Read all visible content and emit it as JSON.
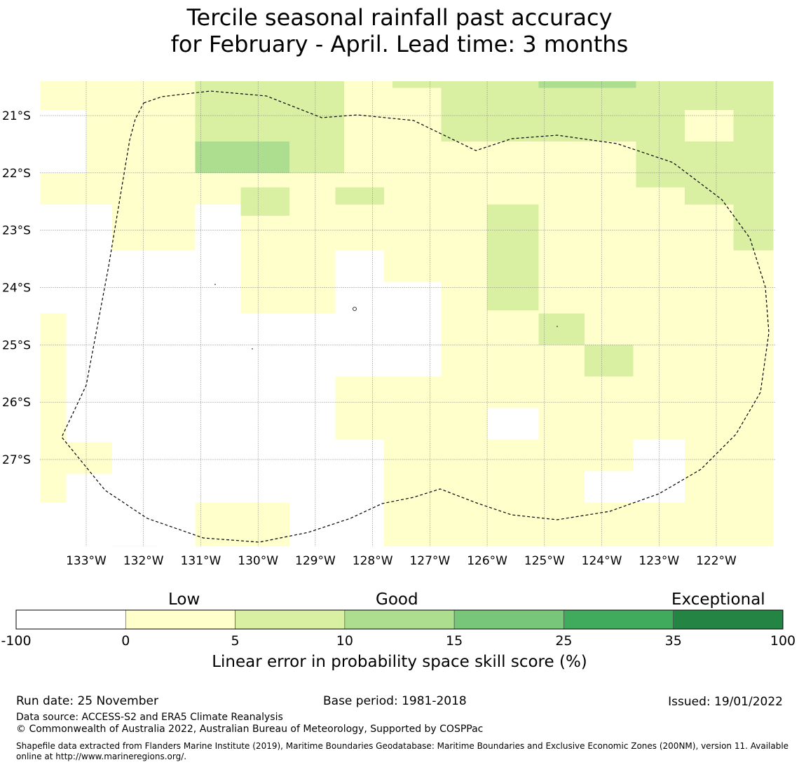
{
  "title": {
    "line1": "Tercile seasonal rainfall past accuracy",
    "line2": "for February - April. Lead time: 3 months"
  },
  "map": {
    "lon_labels": [
      "133°W",
      "132°W",
      "131°W",
      "130°W",
      "129°W",
      "128°W",
      "127°W",
      "126°W",
      "125°W",
      "124°W",
      "123°W",
      "122°W"
    ],
    "lat_labels": [
      "21°S",
      "22°S",
      "23°S",
      "24°S",
      "25°S",
      "26°S",
      "27°S"
    ],
    "colors": {
      "white": "#ffffff",
      "c0": "#ffffcc",
      "c1": "#d9f0a3",
      "c2": "#addd8e",
      "c3": "#78c679",
      "c4": "#41ab5d",
      "c5": "#238443"
    },
    "grid_rows": [
      "..ooooooooooooyyyyyyyyyYyyy...",
      ".ooooyyyyyooooyyyyyyyYyyyy....",
      "oooooyyyyyoooooooooooyyyy.....",
      "oooooyyyyyooooooooooooyyyyyy..",
      "..Yooooooooooooooooooooyyyyy..",
      "..oooooooooooooooooooooyyoooo.",
      "..oooooooooooooooooooooyyoooo.",
      "..ooooooooooooooooooooooooooo.",
      "..ooooooooooooooooooooooooooo."
    ]
  },
  "cells": [
    {
      "lon0": -133.8,
      "lon1": -133.0,
      "lat0": -20.9,
      "lat1": -20.35,
      "v": "c0"
    },
    {
      "lon0": -133.0,
      "lon1": -131.1,
      "lat0": -20.9,
      "lat1": -20.35,
      "v": "c0"
    },
    {
      "lon0": -131.1,
      "lon1": -128.5,
      "lat0": -20.9,
      "lat1": -20.35,
      "v": "c1"
    },
    {
      "lon0": -128.5,
      "lon1": -126.8,
      "lat0": -20.9,
      "lat1": -20.35,
      "v": "c0"
    },
    {
      "lon0": -126.8,
      "lon1": -125.1,
      "lat0": -20.9,
      "lat1": -20.35,
      "v": "c1"
    },
    {
      "lon0": -125.1,
      "lon1": -123.4,
      "lat0": -20.9,
      "lat1": -20.35,
      "v": "c1"
    },
    {
      "lon0": -123.4,
      "lon1": -121.0,
      "lat0": -20.9,
      "lat1": -20.35,
      "v": "c1"
    },
    {
      "lon0": -125.1,
      "lon1": -123.4,
      "lat0": -20.52,
      "lat1": -20.35,
      "v": "c2"
    },
    {
      "lon0": -127.65,
      "lon1": -126.8,
      "lat0": -20.52,
      "lat1": -20.35,
      "v": "c1"
    },
    {
      "lon0": -133.0,
      "lon1": -131.1,
      "lat0": -21.45,
      "lat1": -20.9,
      "v": "c0"
    },
    {
      "lon0": -131.1,
      "lon1": -128.5,
      "lat0": -21.45,
      "lat1": -20.9,
      "v": "c1"
    },
    {
      "lon0": -128.5,
      "lon1": -126.8,
      "lat0": -21.45,
      "lat1": -20.9,
      "v": "c0"
    },
    {
      "lon0": -126.8,
      "lon1": -125.1,
      "lat0": -21.45,
      "lat1": -20.9,
      "v": "c1"
    },
    {
      "lon0": -125.1,
      "lon1": -122.55,
      "lat0": -21.45,
      "lat1": -20.9,
      "v": "c1"
    },
    {
      "lon0": -122.55,
      "lon1": -121.7,
      "lat0": -21.45,
      "lat1": -20.9,
      "v": "c0"
    },
    {
      "lon0": -121.7,
      "lon1": -121.0,
      "lat0": -21.45,
      "lat1": -20.9,
      "v": "c1"
    },
    {
      "lon0": -133.0,
      "lon1": -132.55,
      "lat0": -22.25,
      "lat1": -21.45,
      "v": "c0"
    },
    {
      "lon0": -132.55,
      "lon1": -131.1,
      "lat0": -22.25,
      "lat1": -21.45,
      "v": "c0"
    },
    {
      "lon0": -131.1,
      "lon1": -129.45,
      "lat0": -22.0,
      "lat1": -21.45,
      "v": "c2"
    },
    {
      "lon0": -129.45,
      "lon1": -128.5,
      "lat0": -22.0,
      "lat1": -21.45,
      "v": "c1"
    },
    {
      "lon0": -131.1,
      "lon1": -128.5,
      "lat0": -22.25,
      "lat1": -22.0,
      "v": "c0"
    },
    {
      "lon0": -128.5,
      "lon1": -125.1,
      "lat0": -22.25,
      "lat1": -21.45,
      "v": "c0"
    },
    {
      "lon0": -125.1,
      "lon1": -123.4,
      "lat0": -22.25,
      "lat1": -21.45,
      "v": "c0"
    },
    {
      "lon0": -123.4,
      "lon1": -121.0,
      "lat0": -22.25,
      "lat1": -21.45,
      "v": "c1"
    },
    {
      "lon0": -131.1,
      "lon1": -129.45,
      "lat0": -22.25,
      "lat1": -22.0,
      "v": "c0"
    },
    {
      "lon0": -133.8,
      "lon1": -133.0,
      "lat0": -22.55,
      "lat1": -22.0,
      "v": "c0"
    },
    {
      "lon0": -133.0,
      "lon1": -131.1,
      "lat0": -22.55,
      "lat1": -22.25,
      "v": "c0"
    },
    {
      "lon0": -131.1,
      "lon1": -130.3,
      "lat0": -22.55,
      "lat1": -22.25,
      "v": "c0"
    },
    {
      "lon0": -130.3,
      "lon1": -129.45,
      "lat0": -22.55,
      "lat1": -22.25,
      "v": "c1"
    },
    {
      "lon0": -129.45,
      "lon1": -128.65,
      "lat0": -22.55,
      "lat1": -22.25,
      "v": "c0"
    },
    {
      "lon0": -128.65,
      "lon1": -127.8,
      "lat0": -22.55,
      "lat1": -22.25,
      "v": "c1"
    },
    {
      "lon0": -127.8,
      "lon1": -122.55,
      "lat0": -22.55,
      "lat1": -22.25,
      "v": "c0"
    },
    {
      "lon0": -122.55,
      "lon1": -121.0,
      "lat0": -22.55,
      "lat1": -22.25,
      "v": "c1"
    },
    {
      "lon0": -132.55,
      "lon1": -131.1,
      "lat0": -22.75,
      "lat1": -22.55,
      "v": "c0"
    },
    {
      "lon0": -130.3,
      "lon1": -129.45,
      "lat0": -22.75,
      "lat1": -22.55,
      "v": "c1"
    },
    {
      "lon0": -130.3,
      "lon1": -128.65,
      "lat0": -23.35,
      "lat1": -22.75,
      "v": "c0"
    },
    {
      "lon0": -129.45,
      "lon1": -128.65,
      "lat0": -22.75,
      "lat1": -22.55,
      "v": "c0"
    },
    {
      "lon0": -128.65,
      "lon1": -126.0,
      "lat0": -23.35,
      "lat1": -22.55,
      "v": "c0"
    },
    {
      "lon0": -126.0,
      "lon1": -125.1,
      "lat0": -24.4,
      "lat1": -22.55,
      "v": "c1"
    },
    {
      "lon0": -125.1,
      "lon1": -121.7,
      "lat0": -23.35,
      "lat1": -22.55,
      "v": "c0"
    },
    {
      "lon0": -121.7,
      "lon1": -121.0,
      "lat0": -23.35,
      "lat1": -22.55,
      "v": "c1"
    },
    {
      "lon0": -121.7,
      "lon1": -121.0,
      "lat0": -23.35,
      "lat1": -23.0,
      "v": "c1"
    },
    {
      "lon0": -131.1,
      "lon1": -131.1,
      "lat0": -23.35,
      "lat1": -22.75,
      "v": "c0"
    },
    {
      "lon0": -132.55,
      "lon1": -131.1,
      "lat0": -23.35,
      "lat1": -22.75,
      "v": "c0"
    },
    {
      "lon0": -130.3,
      "lon1": -129.45,
      "lat0": -24.45,
      "lat1": -23.35,
      "v": "c0"
    },
    {
      "lon0": -129.45,
      "lon1": -128.65,
      "lat0": -24.45,
      "lat1": -23.35,
      "v": "c0"
    },
    {
      "lon0": -127.8,
      "lon1": -126.8,
      "lat0": -23.9,
      "lat1": -23.35,
      "v": "c0"
    },
    {
      "lon0": -126.8,
      "lon1": -126.0,
      "lat0": -25.55,
      "lat1": -23.35,
      "v": "c0"
    },
    {
      "lon0": -125.1,
      "lon1": -121.0,
      "lat0": -24.45,
      "lat1": -23.35,
      "v": "c0"
    },
    {
      "lon0": -126.0,
      "lon1": -125.1,
      "lat0": -25.55,
      "lat1": -24.4,
      "v": "c0"
    },
    {
      "lon0": -125.1,
      "lon1": -124.3,
      "lat0": -25.0,
      "lat1": -24.45,
      "v": "c1"
    },
    {
      "lon0": -124.3,
      "lon1": -121.0,
      "lat0": -25.55,
      "lat1": -24.45,
      "v": "c0"
    },
    {
      "lon0": -125.1,
      "lon1": -124.3,
      "lat0": -25.55,
      "lat1": -25.0,
      "v": "c0"
    },
    {
      "lon0": -124.3,
      "lon1": -123.45,
      "lat0": -25.55,
      "lat1": -25.0,
      "v": "c1"
    },
    {
      "lon0": -123.45,
      "lon1": -121.0,
      "lat0": -25.55,
      "lat1": -25.0,
      "v": "c0"
    },
    {
      "lon0": -133.8,
      "lon1": -133.35,
      "lat0": -27.75,
      "lat1": -24.45,
      "v": "c0"
    },
    {
      "lon0": -133.35,
      "lon1": -132.55,
      "lat0": -27.25,
      "lat1": -26.7,
      "v": "c0"
    },
    {
      "lon0": -128.65,
      "lon1": -127.8,
      "lat0": -26.65,
      "lat1": -25.55,
      "v": "c0"
    },
    {
      "lon0": -127.8,
      "lon1": -126.0,
      "lat0": -28.65,
      "lat1": -25.55,
      "v": "c0"
    },
    {
      "lon0": -126.0,
      "lon1": -125.1,
      "lat0": -26.1,
      "lat1": -25.55,
      "v": "c0"
    },
    {
      "lon0": -125.1,
      "lon1": -121.0,
      "lat0": -26.65,
      "lat1": -25.55,
      "v": "c0"
    },
    {
      "lon0": -126.0,
      "lon1": -125.1,
      "lat0": -27.2,
      "lat1": -26.65,
      "v": "c0"
    },
    {
      "lon0": -125.1,
      "lon1": -123.45,
      "lat0": -27.2,
      "lat1": -26.65,
      "v": "c0"
    },
    {
      "lon0": -122.55,
      "lon1": -121.0,
      "lat0": -27.2,
      "lat1": -26.65,
      "v": "c0"
    },
    {
      "lon0": -126.0,
      "lon1": -124.3,
      "lat0": -27.75,
      "lat1": -27.2,
      "v": "c0"
    },
    {
      "lon0": -122.55,
      "lon1": -121.0,
      "lat0": -27.75,
      "lat1": -27.2,
      "v": "c0"
    },
    {
      "lon0": -126.0,
      "lon1": -125.1,
      "lat0": -28.65,
      "lat1": -27.75,
      "v": "c0"
    },
    {
      "lon0": -125.1,
      "lon1": -121.0,
      "lat0": -28.65,
      "lat1": -27.75,
      "v": "c0"
    },
    {
      "lon0": -131.1,
      "lon1": -129.45,
      "lat0": -28.65,
      "lat1": -27.75,
      "v": "c0"
    },
    {
      "lon0": -132.55,
      "lon1": -131.75,
      "lat0": -28.65,
      "lat1": -28.5,
      "v": "c0"
    }
  ],
  "colorbar": {
    "category_labels": [
      "Low",
      "Good",
      "Exceptional"
    ],
    "ticks": [
      "-100",
      "0",
      "5",
      "10",
      "15",
      "25",
      "35",
      "100"
    ],
    "segment_colors": [
      "#ffffff",
      "#ffffcc",
      "#d9f0a3",
      "#addd8e",
      "#78c679",
      "#41ab5d",
      "#238443"
    ],
    "label": "Linear error in probability space skill score (%)"
  },
  "footer": {
    "run_date": "Run date: 25 November",
    "base_period": "Base period: 1981-2018",
    "issued": "Issued: 19/01/2022",
    "data_source": "Data source: ACCESS-S2 and ERA5 Climate Reanalysis",
    "copyright": "© Commonwealth of Australia 2022, Australian Bureau of Meteorology, Supported by COSPPac",
    "shapefile": "Shapefile data extracted from Flanders Marine Institute (2019), Maritime Boundaries Geodatabase: Maritime Boundaries and Exclusive Economic Zones (200NM), version 11. Available online at http://www.marineregions.org/."
  }
}
